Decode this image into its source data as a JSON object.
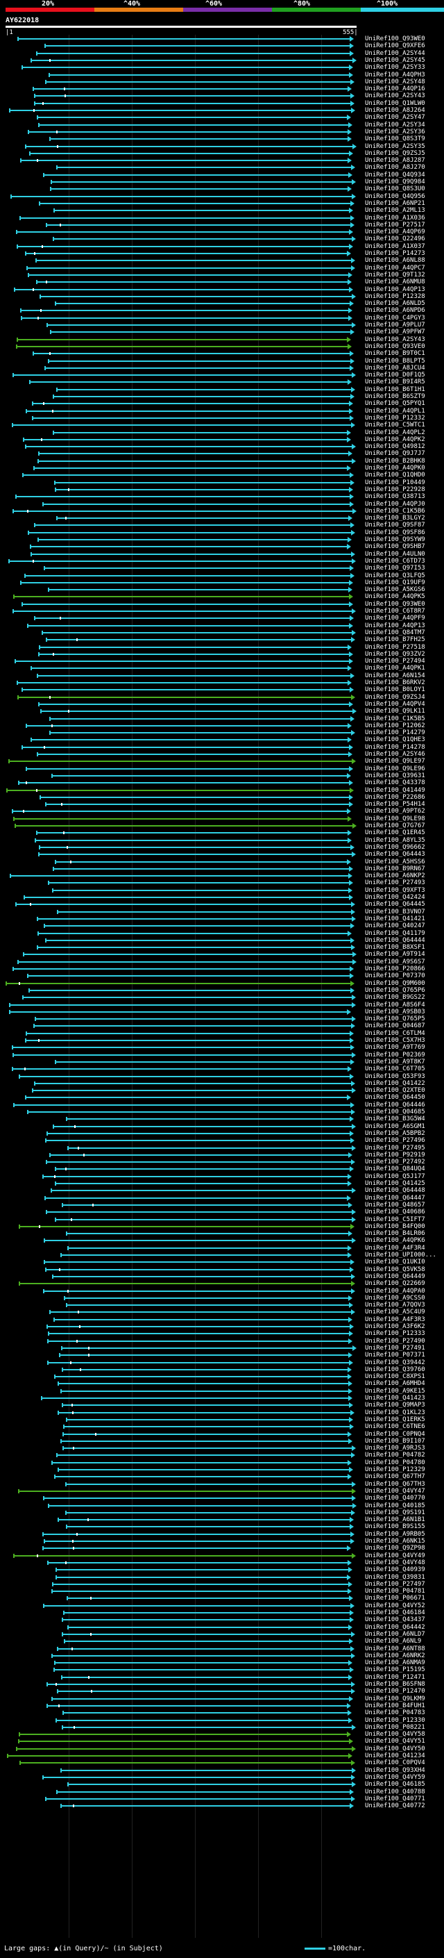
{
  "scale": {
    "labels": [
      "20%",
      "^40%",
      "^60%",
      "^80%",
      "^100%"
    ],
    "colors": [
      "#e8101c",
      "#e87d14",
      "#7a2ea8",
      "#20a020",
      "#2fd0e4"
    ]
  },
  "query": {
    "id": "AY622018",
    "start": "|1",
    "end": "555|"
  },
  "colors": {
    "cyan": "#2fd0e4",
    "green": "#4cb020",
    "gap": "#ffffff"
  },
  "hits": [
    {
      "label": "UniRef100_Q93WE0",
      "c": "c"
    },
    {
      "label": "UniRef100_Q9XFE6",
      "c": "c"
    },
    {
      "label": "UniRef100_A2SY44",
      "c": "c"
    },
    {
      "label": "UniRef100_A2SY45",
      "c": "c"
    },
    {
      "label": "UniRef100_A2SY33",
      "c": "c"
    },
    {
      "label": "UniRef100_A4QPH3",
      "c": "c"
    },
    {
      "label": "UniRef100_A2SY48",
      "c": "c"
    },
    {
      "label": "UniRef100_A4QP16",
      "c": "c"
    },
    {
      "label": "UniRef100_A2SY43",
      "c": "c"
    },
    {
      "label": "UniRef100_Q1WLW0",
      "c": "c"
    },
    {
      "label": "UniRef100_A8J264",
      "c": "c"
    },
    {
      "label": "UniRef100_A2SY47",
      "c": "c"
    },
    {
      "label": "UniRef100_A2SY34",
      "c": "c"
    },
    {
      "label": "UniRef100_A2SY36",
      "c": "c"
    },
    {
      "label": "UniRef100_Q8S3T9",
      "c": "c"
    },
    {
      "label": "UniRef100_A2SY35",
      "c": "c"
    },
    {
      "label": "UniRef100_Q9ZSJ5",
      "c": "c"
    },
    {
      "label": "UniRef100_A8J287",
      "c": "c"
    },
    {
      "label": "UniRef100_A8J270",
      "c": "c"
    },
    {
      "label": "UniRef100_Q4Q934",
      "c": "c"
    },
    {
      "label": "UniRef100_Q9Q984",
      "c": "c"
    },
    {
      "label": "UniRef100_Q8S3U0",
      "c": "c"
    },
    {
      "label": "UniRef100_Q4Q956",
      "c": "c"
    },
    {
      "label": "UniRef100_A6NP21",
      "c": "c"
    },
    {
      "label": "UniRef100_A2ML13",
      "c": "c"
    },
    {
      "label": "UniRef100_A1X036",
      "c": "c"
    },
    {
      "label": "UniRef100_P27517",
      "c": "c"
    },
    {
      "label": "UniRef100_A4QP69",
      "c": "c"
    },
    {
      "label": "UniRef100_Q22496",
      "c": "c"
    },
    {
      "label": "UniRef100_A1X037",
      "c": "c"
    },
    {
      "label": "UniRef100_P14273",
      "c": "c"
    },
    {
      "label": "UniRef100_A6NL88",
      "c": "c"
    },
    {
      "label": "UniRef100_A4QPC7",
      "c": "c"
    },
    {
      "label": "UniRef100_Q9T132",
      "c": "c"
    },
    {
      "label": "UniRef100_A6NMU8",
      "c": "c"
    },
    {
      "label": "UniRef100_A4QP13",
      "c": "c"
    },
    {
      "label": "UniRef100_P12328",
      "c": "c"
    },
    {
      "label": "UniRef100_A6NLD5",
      "c": "c"
    },
    {
      "label": "UniRef100_A6NPD6",
      "c": "c"
    },
    {
      "label": "UniRef100_C4PGY3",
      "c": "c"
    },
    {
      "label": "UniRef100_A9PLU7",
      "c": "c"
    },
    {
      "label": "UniRef100_A9PFW7",
      "c": "c"
    },
    {
      "label": "UniRef100_A2SY43",
      "c": "g"
    },
    {
      "label": "UniRef100_Q93VE0",
      "c": "g"
    },
    {
      "label": "UniRef100_B9T0C1",
      "c": "c"
    },
    {
      "label": "UniRef100_B8LPT5",
      "c": "c"
    },
    {
      "label": "UniRef100_A8JCU4",
      "c": "c"
    },
    {
      "label": "UniRef100_D0F1Q5",
      "c": "c"
    },
    {
      "label": "UniRef100_B9I4R5",
      "c": "c"
    },
    {
      "label": "UniRef100_B6T1H1",
      "c": "c"
    },
    {
      "label": "UniRef100_B6SZT9",
      "c": "c"
    },
    {
      "label": "UniRef100_Q5PYQ1",
      "c": "c"
    },
    {
      "label": "UniRef100_A4QPL1",
      "c": "c"
    },
    {
      "label": "UniRef100_P12332",
      "c": "c"
    },
    {
      "label": "UniRef100_C5WTC1",
      "c": "c"
    },
    {
      "label": "UniRef100_A4QPL2",
      "c": "c"
    },
    {
      "label": "UniRef100_A4QPK2",
      "c": "c"
    },
    {
      "label": "UniRef100_Q49812",
      "c": "c"
    },
    {
      "label": "UniRef100_Q9J7J7",
      "c": "c"
    },
    {
      "label": "UniRef100_B2BHK8",
      "c": "c"
    },
    {
      "label": "UniRef100_A4QPK0",
      "c": "c"
    },
    {
      "label": "UniRef100_Q1QHD0",
      "c": "c"
    },
    {
      "label": "UniRef100_P10449",
      "c": "c"
    },
    {
      "label": "UniRef100_P22928",
      "c": "c"
    },
    {
      "label": "UniRef100_Q38713",
      "c": "c"
    },
    {
      "label": "UniRef100_A4QPJ0",
      "c": "c"
    },
    {
      "label": "UniRef100_C1K5B6",
      "c": "c"
    },
    {
      "label": "UniRef100_B3LGY2",
      "c": "c"
    },
    {
      "label": "UniRef100_Q9SF87",
      "c": "c"
    },
    {
      "label": "UniRef100_Q9SF86",
      "c": "c"
    },
    {
      "label": "UniRef100_Q9SYW9",
      "c": "c"
    },
    {
      "label": "UniRef100_Q9SHB7",
      "c": "c"
    },
    {
      "label": "UniRef100_A4ULN0",
      "c": "c"
    },
    {
      "label": "UniRef100_C6TD73",
      "c": "c"
    },
    {
      "label": "UniRef100_Q97I53",
      "c": "c"
    },
    {
      "label": "UniRef100_Q3LFQ5",
      "c": "c"
    },
    {
      "label": "UniRef100_Q19UF9",
      "c": "c"
    },
    {
      "label": "UniRef100_A5KGS6",
      "c": "c"
    },
    {
      "label": "UniRef100_A4QPK5",
      "c": "g"
    },
    {
      "label": "UniRef100_Q93WE0",
      "c": "c"
    },
    {
      "label": "UniRef100_C6T8R7",
      "c": "c"
    },
    {
      "label": "UniRef100_A4QPF9",
      "c": "c"
    },
    {
      "label": "UniRef100_A4QP13",
      "c": "c"
    },
    {
      "label": "UniRef100_Q84TM7",
      "c": "c"
    },
    {
      "label": "UniRef100_B7FH25",
      "c": "c"
    },
    {
      "label": "UniRef100_P27518",
      "c": "c"
    },
    {
      "label": "UniRef100_Q93ZV2",
      "c": "c"
    },
    {
      "label": "UniRef100_P27494",
      "c": "c"
    },
    {
      "label": "UniRef100_A4QPK1",
      "c": "c"
    },
    {
      "label": "UniRef100_A6N154",
      "c": "c"
    },
    {
      "label": "UniRef100_B6RKV2",
      "c": "c"
    },
    {
      "label": "UniRef100_B0LOY1",
      "c": "c"
    },
    {
      "label": "UniRef100_Q9ZSJ4",
      "c": "g"
    },
    {
      "label": "UniRef100_A4QPV4",
      "c": "c"
    },
    {
      "label": "UniRef100_Q9LK11",
      "c": "c"
    },
    {
      "label": "UniRef100_C1K5B5",
      "c": "c"
    },
    {
      "label": "UniRef100_P12062",
      "c": "c"
    },
    {
      "label": "UniRef100_P14279",
      "c": "c"
    },
    {
      "label": "UniRef100_Q1QHE3",
      "c": "c"
    },
    {
      "label": "UniRef100_P14278",
      "c": "c"
    },
    {
      "label": "UniRef100_A2SY46",
      "c": "c"
    },
    {
      "label": "UniRef100_Q9LE97",
      "c": "g"
    },
    {
      "label": "UniRef100_Q9LE96",
      "c": "c"
    },
    {
      "label": "UniRef100_Q39631",
      "c": "c"
    },
    {
      "label": "UniRef100_Q43378",
      "c": "c"
    },
    {
      "label": "UniRef100_Q41449",
      "c": "g"
    },
    {
      "label": "UniRef100_P22686",
      "c": "c"
    },
    {
      "label": "UniRef100_P54H14",
      "c": "c"
    },
    {
      "label": "UniRef100_A9PT62",
      "c": "c"
    },
    {
      "label": "UniRef100_Q9LE98",
      "c": "g"
    },
    {
      "label": "UniRef100_Q7G767",
      "c": "g"
    },
    {
      "label": "UniRef100_Q1ER45",
      "c": "c"
    },
    {
      "label": "UniRef100_A8YL35",
      "c": "c"
    },
    {
      "label": "UniRef100_Q96662",
      "c": "c"
    },
    {
      "label": "UniRef100_Q64443",
      "c": "c"
    },
    {
      "label": "UniRef100_A5HSS6",
      "c": "c"
    },
    {
      "label": "UniRef100_B9RN67",
      "c": "c"
    },
    {
      "label": "UniRef100_A6NKP2",
      "c": "c"
    },
    {
      "label": "UniRef100_P27493",
      "c": "c"
    },
    {
      "label": "UniRef100_Q9XFT3",
      "c": "c"
    },
    {
      "label": "UniRef100_Q42424",
      "c": "c"
    },
    {
      "label": "UniRef100_Q64445",
      "c": "c"
    },
    {
      "label": "UniRef100_B3VNO7",
      "c": "c"
    },
    {
      "label": "UniRef100_Q41421",
      "c": "c"
    },
    {
      "label": "UniRef100_Q40247",
      "c": "c"
    },
    {
      "label": "UniRef100_Q41179",
      "c": "c"
    },
    {
      "label": "UniRef100_Q64444",
      "c": "c"
    },
    {
      "label": "UniRef100_B8XSF1",
      "c": "c"
    },
    {
      "label": "UniRef100_A9T914",
      "c": "c"
    },
    {
      "label": "UniRef100_A9S6S7",
      "c": "c"
    },
    {
      "label": "UniRef100_P20866",
      "c": "c"
    },
    {
      "label": "UniRef100_P07370",
      "c": "c"
    },
    {
      "label": "UniRef100_Q9M600",
      "c": "g"
    },
    {
      "label": "UniRef100_Q765P6",
      "c": "c"
    },
    {
      "label": "UniRef100_B9GS22",
      "c": "c"
    },
    {
      "label": "UniRef100_A8S6F4",
      "c": "c"
    },
    {
      "label": "UniRef100_A9SB03",
      "c": "c"
    },
    {
      "label": "UniRef100_Q765P5",
      "c": "c"
    },
    {
      "label": "UniRef100_Q04687",
      "c": "c"
    },
    {
      "label": "UniRef100_C6TLM4",
      "c": "c"
    },
    {
      "label": "UniRef100_C5X7H3",
      "c": "c"
    },
    {
      "label": "UniRef100_A9T769",
      "c": "c"
    },
    {
      "label": "UniRef100_P02369",
      "c": "c"
    },
    {
      "label": "UniRef100_A9T8K7",
      "c": "c"
    },
    {
      "label": "UniRef100_C6T705",
      "c": "c"
    },
    {
      "label": "UniRef100_Q53F93",
      "c": "c"
    },
    {
      "label": "UniRef100_Q41422",
      "c": "c"
    },
    {
      "label": "UniRef100_Q2XTE0",
      "c": "c"
    },
    {
      "label": "UniRef100_Q64450",
      "c": "c"
    },
    {
      "label": "UniRef100_Q64446",
      "c": "c"
    },
    {
      "label": "UniRef100_Q04685",
      "c": "c"
    },
    {
      "label": "UniRef100_B3G5W4",
      "c": "c"
    },
    {
      "label": "UniRef100_A6SGM1",
      "c": "c"
    },
    {
      "label": "UniRef100_A5BPB2",
      "c": "c"
    },
    {
      "label": "UniRef100_P27496",
      "c": "c"
    },
    {
      "label": "UniRef100_P27495",
      "c": "c"
    },
    {
      "label": "UniRef100_P92919",
      "c": "c"
    },
    {
      "label": "UniRef100_P27492",
      "c": "c"
    },
    {
      "label": "UniRef100_Q84UQ4",
      "c": "c"
    },
    {
      "label": "UniRef100_Q5J177",
      "c": "c"
    },
    {
      "label": "UniRef100_Q41425",
      "c": "c"
    },
    {
      "label": "UniRef100_Q64448",
      "c": "c"
    },
    {
      "label": "UniRef100_Q64447",
      "c": "c"
    },
    {
      "label": "UniRef100_Q48657",
      "c": "c"
    },
    {
      "label": "UniRef100_Q40686",
      "c": "c"
    },
    {
      "label": "UniRef100_C5IFT7",
      "c": "c"
    },
    {
      "label": "UniRef100_B4FQ00",
      "c": "g"
    },
    {
      "label": "UniRef100_B4LR06",
      "c": "c"
    },
    {
      "label": "UniRef100_A4QPK6",
      "c": "c"
    },
    {
      "label": "UniRef100_A4F3R4",
      "c": "c"
    },
    {
      "label": "UniRef100_UPI000...",
      "c": "c"
    },
    {
      "label": "UniRef100_Q1UKI0",
      "c": "c"
    },
    {
      "label": "UniRef100_Q5VK58",
      "c": "c"
    },
    {
      "label": "UniRef100_Q64449",
      "c": "c"
    },
    {
      "label": "UniRef100_Q22669",
      "c": "g"
    },
    {
      "label": "UniRef100_A4QPA0",
      "c": "c"
    },
    {
      "label": "UniRef100_A9CSS0",
      "c": "c"
    },
    {
      "label": "UniRef100_A7QOV3",
      "c": "c"
    },
    {
      "label": "UniRef100_A5C4U9",
      "c": "c"
    },
    {
      "label": "UniRef100_A4F3R3",
      "c": "c"
    },
    {
      "label": "UniRef100_A3F6K2",
      "c": "c"
    },
    {
      "label": "UniRef100_P12333",
      "c": "c"
    },
    {
      "label": "UniRef100_P27490",
      "c": "c"
    },
    {
      "label": "UniRef100_P27491",
      "c": "c"
    },
    {
      "label": "UniRef100_P07371",
      "c": "c"
    },
    {
      "label": "UniRef100_Q39442",
      "c": "c"
    },
    {
      "label": "UniRef100_Q39760",
      "c": "c"
    },
    {
      "label": "UniRef100_C8XPS1",
      "c": "c"
    },
    {
      "label": "UniRef100_A6MHD4",
      "c": "c"
    },
    {
      "label": "UniRef100_A9KE15",
      "c": "c"
    },
    {
      "label": "UniRef100_Q41423",
      "c": "c"
    },
    {
      "label": "UniRef100_Q9MAP3",
      "c": "c"
    },
    {
      "label": "UniRef100_Q1KL23",
      "c": "c"
    },
    {
      "label": "UniRef100_Q1ERK5",
      "c": "c"
    },
    {
      "label": "UniRef100_C6TNE6",
      "c": "c"
    },
    {
      "label": "UniRef100_C0PNQ4",
      "c": "c"
    },
    {
      "label": "UniRef100_B9I107",
      "c": "c"
    },
    {
      "label": "UniRef100_A9RJS3",
      "c": "c"
    },
    {
      "label": "UniRef100_P04782",
      "c": "c"
    },
    {
      "label": "UniRef100_P04780",
      "c": "c"
    },
    {
      "label": "UniRef100_P12329",
      "c": "c"
    },
    {
      "label": "UniRef100_Q67TH7",
      "c": "c"
    },
    {
      "label": "UniRef100_Q67TH3",
      "c": "c"
    },
    {
      "label": "UniRef100_Q4VY47",
      "c": "g"
    },
    {
      "label": "UniRef100_Q40770",
      "c": "c"
    },
    {
      "label": "UniRef100_Q40185",
      "c": "c"
    },
    {
      "label": "UniRef100_Q9S191",
      "c": "c"
    },
    {
      "label": "UniRef100_A6N1B1",
      "c": "c"
    },
    {
      "label": "UniRef100_B9S155",
      "c": "c"
    },
    {
      "label": "UniRef100_A9RB05",
      "c": "c"
    },
    {
      "label": "UniRef100_A6NK15",
      "c": "c"
    },
    {
      "label": "UniRef100_Q9ZP98",
      "c": "c"
    },
    {
      "label": "UniRef100_Q4VY49",
      "c": "g"
    },
    {
      "label": "UniRef100_Q4VY48",
      "c": "c"
    },
    {
      "label": "UniRef100_Q40939",
      "c": "c"
    },
    {
      "label": "UniRef100_Q39831",
      "c": "c"
    },
    {
      "label": "UniRef100_P27497",
      "c": "c"
    },
    {
      "label": "UniRef100_P04781",
      "c": "c"
    },
    {
      "label": "UniRef100_P06671",
      "c": "c"
    },
    {
      "label": "UniRef100_Q4VY52",
      "c": "c"
    },
    {
      "label": "UniRef100_Q46184",
      "c": "c"
    },
    {
      "label": "UniRef100_Q43437",
      "c": "c"
    },
    {
      "label": "UniRef100_Q64442",
      "c": "c"
    },
    {
      "label": "UniRef100_A6NLD7",
      "c": "c"
    },
    {
      "label": "UniRef100_A6NL9",
      "c": "c"
    },
    {
      "label": "UniRef100_A6NT88",
      "c": "c"
    },
    {
      "label": "UniRef100_A6NRK2",
      "c": "c"
    },
    {
      "label": "UniRef100_A6NMA9",
      "c": "c"
    },
    {
      "label": "UniRef100_P15195",
      "c": "c"
    },
    {
      "label": "UniRef100_P12471",
      "c": "c"
    },
    {
      "label": "UniRef100_B6SFN8",
      "c": "c"
    },
    {
      "label": "UniRef100_P12470",
      "c": "c"
    },
    {
      "label": "UniRef100_Q9LKM9",
      "c": "c"
    },
    {
      "label": "UniRef100_B4FUH1",
      "c": "c"
    },
    {
      "label": "UniRef100_P04783",
      "c": "c"
    },
    {
      "label": "UniRef100_P12330",
      "c": "c"
    },
    {
      "label": "UniRef100_P08221",
      "c": "c"
    },
    {
      "label": "UniRef100_Q4VY58",
      "c": "g"
    },
    {
      "label": "UniRef100_Q4VY51",
      "c": "g"
    },
    {
      "label": "UniRef100_Q4VY50",
      "c": "g"
    },
    {
      "label": "UniRef100_Q41234",
      "c": "g"
    },
    {
      "label": "UniRef100_C0PQV4",
      "c": "g"
    },
    {
      "label": "UniRef100_Q93XH4",
      "c": "c"
    },
    {
      "label": "UniRef100_Q4VY59",
      "c": "c"
    },
    {
      "label": "UniRef100_Q46185",
      "c": "c"
    },
    {
      "label": "UniRef100_Q40788",
      "c": "c"
    },
    {
      "label": "UniRef100_Q40771",
      "c": "c"
    },
    {
      "label": "UniRef100_Q40772",
      "c": "c"
    }
  ],
  "footer": {
    "text": "Large gaps: ▲(in Query)/~ (in Subject)",
    "legend": "=100char."
  }
}
